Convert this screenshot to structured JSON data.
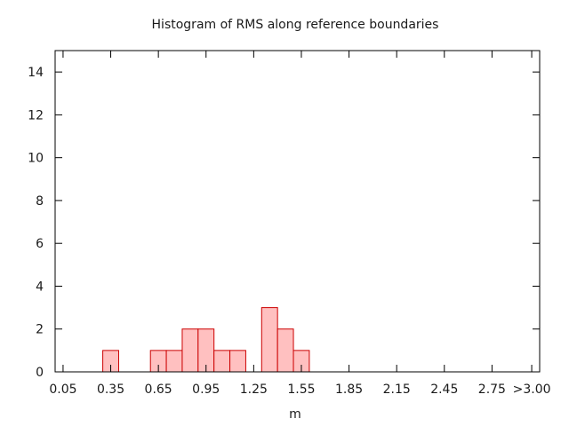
{
  "chart_data": {
    "type": "bar",
    "title": "Histogram of RMS along reference boundaries",
    "xlabel": "m",
    "ylabel": "",
    "bin_width": 0.1,
    "bins": [
      {
        "center": 0.35,
        "value": 1
      },
      {
        "center": 0.65,
        "value": 1
      },
      {
        "center": 0.75,
        "value": 1
      },
      {
        "center": 0.85,
        "value": 2
      },
      {
        "center": 0.95,
        "value": 2
      },
      {
        "center": 1.05,
        "value": 1
      },
      {
        "center": 1.15,
        "value": 1
      },
      {
        "center": 1.35,
        "value": 3
      },
      {
        "center": 1.45,
        "value": 2
      },
      {
        "center": 1.55,
        "value": 1
      }
    ],
    "xlim": [
      0.0,
      3.05
    ],
    "ylim": [
      0,
      15
    ],
    "x_ticks": [
      {
        "value": 0.05,
        "label": "0.05"
      },
      {
        "value": 0.35,
        "label": "0.35"
      },
      {
        "value": 0.65,
        "label": "0.65"
      },
      {
        "value": 0.95,
        "label": "0.95"
      },
      {
        "value": 1.25,
        "label": "1.25"
      },
      {
        "value": 1.55,
        "label": "1.55"
      },
      {
        "value": 1.85,
        "label": "1.85"
      },
      {
        "value": 2.15,
        "label": "2.15"
      },
      {
        "value": 2.45,
        "label": "2.45"
      },
      {
        "value": 2.75,
        "label": "2.75"
      },
      {
        "value": 3.0,
        "label": ">3.00"
      }
    ],
    "y_ticks": [
      {
        "value": 0,
        "label": "0"
      },
      {
        "value": 2,
        "label": "2"
      },
      {
        "value": 4,
        "label": "4"
      },
      {
        "value": 6,
        "label": "6"
      },
      {
        "value": 8,
        "label": "8"
      },
      {
        "value": 10,
        "label": "10"
      },
      {
        "value": 12,
        "label": "12"
      },
      {
        "value": 14,
        "label": "14"
      }
    ],
    "grid": false,
    "bar_fill": "#ffc0c0",
    "bar_stroke": "#cc0000"
  }
}
